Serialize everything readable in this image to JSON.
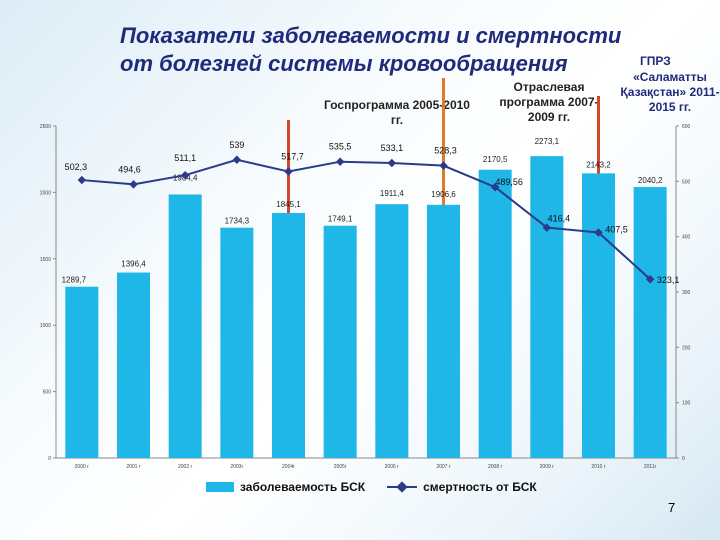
{
  "title": {
    "line1": "Показатели заболеваемости и смертности",
    "line2": "от болезней системы кровообращения"
  },
  "notes": {
    "gprz_abbr": "ГПРЗ",
    "gprz": "«Саламатты Қазақстан» 2011-2015 гг.",
    "gosprogramma": "Госпрограмма 2005-2010 гг.",
    "otraslevaya": "Отраслевая программа 2007-2009 гг."
  },
  "page_number": "7",
  "colors": {
    "bar": "#1fb6e8",
    "line": "#2b3a8a",
    "separator_red": "#d4472a",
    "separator_orange": "#e07a2a"
  },
  "chart_data": {
    "type": "bar",
    "categories": [
      "2000 г",
      "2001 г",
      "2002 г",
      "2003г",
      "2004г",
      "2005г",
      "2006 г",
      "2007 г",
      "2008 г",
      "2009 г",
      "2010 г",
      "2011г"
    ],
    "series": [
      {
        "name": "заболеваемость БСК",
        "type": "bar",
        "axis": "left",
        "values": [
          1289.7,
          1396.4,
          1984.4,
          1734.3,
          1845.1,
          1749.1,
          1911.4,
          1906.6,
          2170.5,
          2273.1,
          2143.2,
          2040.2
        ],
        "labels": [
          "1289,7",
          "1396,4",
          "1984,4",
          "1734,3",
          "1845,1",
          "1749,1",
          "1911,4",
          "1906,6",
          "2170,5",
          "2273,1",
          "2143,2",
          "2040,2"
        ]
      },
      {
        "name": "смертность от БСК",
        "type": "line",
        "axis": "right",
        "values": [
          502.3,
          494.6,
          511.1,
          539,
          517.7,
          535.5,
          533.1,
          528.3,
          489.56,
          416.4,
          407.5,
          323.1
        ],
        "labels": [
          "502,3",
          "494,6",
          "511,1",
          "539",
          "517,7",
          "535,5",
          "533,1",
          "528,3",
          "489,56",
          "416,4",
          "407,5",
          "323,1"
        ]
      }
    ],
    "y_left": {
      "min": 0,
      "max": 2500,
      "ticks": [
        "0",
        "500",
        "1000",
        "1500",
        "2000",
        "2500"
      ]
    },
    "y_right": {
      "min": 0,
      "max": 600,
      "ticks": [
        "0",
        "100",
        "200",
        "300",
        "400",
        "500",
        "600"
      ]
    },
    "legend_position": "bottom",
    "grid": false
  }
}
